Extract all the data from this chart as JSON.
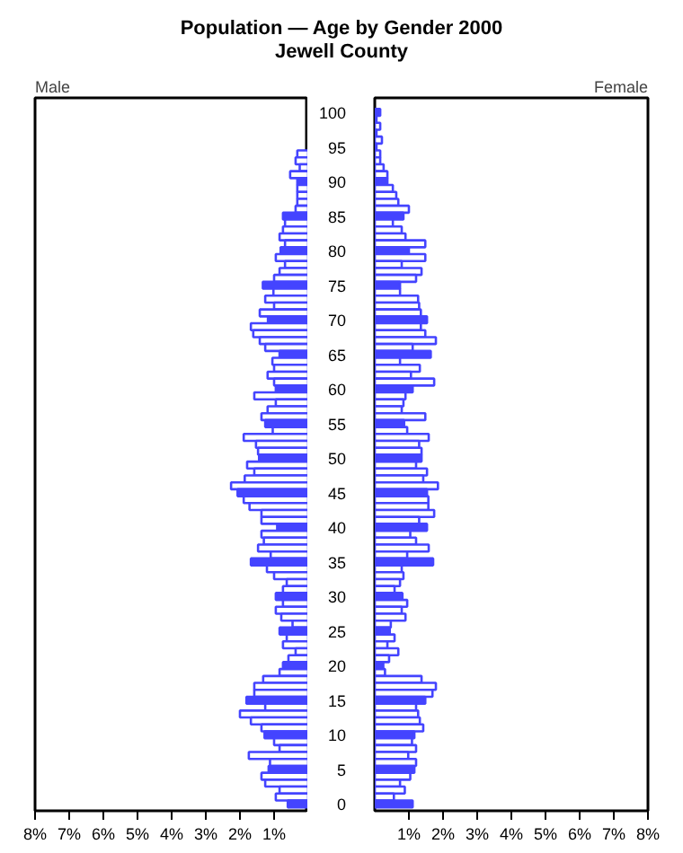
{
  "chart_data": [
    {
      "type": "bar",
      "orientation": "horizontal",
      "title": "Population — Age by Gender 2000",
      "subtitle": "Jewell County",
      "tick_labels": "x",
      "grid": false,
      "categories": [
        "100",
        null,
        null,
        null,
        null,
        "95",
        null,
        null,
        null,
        null,
        "90",
        null,
        null,
        null,
        null,
        "85",
        null,
        null,
        null,
        null,
        "80",
        null,
        null,
        null,
        null,
        "75",
        null,
        null,
        null,
        null,
        "70",
        null,
        null,
        null,
        null,
        "65",
        null,
        null,
        null,
        null,
        "60",
        null,
        null,
        null,
        null,
        "55",
        null,
        null,
        null,
        null,
        "50",
        null,
        null,
        null,
        null,
        "45",
        null,
        null,
        null,
        null,
        "40",
        null,
        null,
        null,
        null,
        "35",
        null,
        null,
        null,
        null,
        "30",
        null,
        null,
        null,
        null,
        "25",
        null,
        null,
        null,
        null,
        "20",
        null,
        null,
        null,
        null,
        "15",
        null,
        null,
        null,
        null,
        "10",
        null,
        null,
        null,
        null,
        "5",
        null,
        null,
        null,
        null,
        "0"
      ],
      "xlim": [
        8,
        0
      ],
      "xticks": [
        {
          "value": 8,
          "label": "8%"
        },
        {
          "value": 7,
          "label": "7%"
        },
        {
          "value": 6,
          "label": "6%"
        },
        {
          "value": 5,
          "label": "5%"
        },
        {
          "value": 4,
          "label": "4%"
        },
        {
          "value": 3,
          "label": "3%"
        },
        {
          "value": 2,
          "label": "2%"
        },
        {
          "value": 1,
          "label": "1%"
        }
      ],
      "series": [
        {
          "name": "Male",
          "color": "#4444ff",
          "colors": [
            "#4444ff",
            "#ffffff",
            "#ffffff",
            "#ffffff",
            "#ffffff",
            "#4444ff",
            "#ffffff",
            "#ffffff",
            "#ffffff",
            "#ffffff",
            "#4444ff",
            "#ffffff",
            "#ffffff",
            "#ffffff",
            "#ffffff",
            "#4444ff",
            "#ffffff",
            "#ffffff",
            "#ffffff",
            "#ffffff",
            "#4444ff",
            "#ffffff",
            "#ffffff",
            "#ffffff",
            "#ffffff",
            "#4444ff",
            "#ffffff",
            "#ffffff",
            "#ffffff",
            "#ffffff",
            "#4444ff",
            "#ffffff",
            "#ffffff",
            "#ffffff",
            "#ffffff",
            "#4444ff",
            "#ffffff",
            "#ffffff",
            "#ffffff",
            "#ffffff",
            "#4444ff",
            "#ffffff",
            "#ffffff",
            "#ffffff",
            "#ffffff",
            "#4444ff",
            "#ffffff",
            "#ffffff",
            "#ffffff",
            "#ffffff",
            "#4444ff",
            "#ffffff",
            "#ffffff",
            "#ffffff",
            "#ffffff",
            "#4444ff",
            "#ffffff",
            "#ffffff",
            "#ffffff",
            "#ffffff",
            "#4444ff",
            "#ffffff",
            "#ffffff",
            "#ffffff",
            "#ffffff",
            "#4444ff",
            "#ffffff",
            "#ffffff",
            "#ffffff",
            "#ffffff",
            "#4444ff",
            "#ffffff",
            "#ffffff",
            "#ffffff",
            "#ffffff",
            "#4444ff",
            "#ffffff",
            "#ffffff",
            "#ffffff",
            "#ffffff",
            "#4444ff",
            "#ffffff",
            "#ffffff",
            "#ffffff",
            "#ffffff",
            "#4444ff",
            "#ffffff",
            "#ffffff",
            "#ffffff",
            "#ffffff",
            "#4444ff",
            "#ffffff",
            "#ffffff",
            "#ffffff",
            "#ffffff",
            "#4444ff",
            "#ffffff",
            "#ffffff",
            "#ffffff",
            "#ffffff",
            "#4444ff"
          ],
          "values": [
            null,
            null,
            null,
            null,
            null,
            null,
            0.32,
            0.37,
            0.25,
            0.53,
            0.32,
            0.32,
            0.32,
            0.32,
            0.37,
            0.74,
            0.68,
            0.74,
            0.84,
            0.68,
            0.81,
            0.95,
            0.68,
            0.84,
            1.0,
            1.33,
            1.02,
            1.26,
            1.0,
            1.42,
            1.18,
            1.68,
            1.61,
            1.42,
            1.26,
            0.84,
            1.05,
            1.0,
            1.19,
            1.0,
            0.95,
            1.58,
            0.95,
            1.19,
            1.37,
            1.26,
            1.04,
            1.89,
            1.53,
            1.47,
            1.44,
            1.79,
            1.58,
            1.86,
            2.26,
            2.07,
            1.89,
            1.72,
            1.37,
            1.37,
            0.91,
            1.37,
            1.3,
            1.47,
            1.1,
            1.68,
            1.21,
            1.0,
            0.63,
            0.74,
            0.95,
            0.74,
            0.95,
            0.79,
            0.46,
            0.84,
            0.63,
            0.74,
            0.37,
            0.58,
            0.74,
            0.84,
            1.32,
            1.58,
            1.58,
            1.81,
            1.26,
            2.0,
            1.68,
            1.37,
            1.28,
            1.0,
            0.84,
            1.74,
            1.12,
            1.16,
            1.37,
            1.26,
            0.84,
            0.95,
            0.6
          ]
        }
      ]
    },
    {
      "type": "bar",
      "orientation": "horizontal",
      "grid": false,
      "categories": [
        "100",
        null,
        null,
        null,
        null,
        "95",
        null,
        null,
        null,
        null,
        "90",
        null,
        null,
        null,
        null,
        "85",
        null,
        null,
        null,
        null,
        "80",
        null,
        null,
        null,
        null,
        "75",
        null,
        null,
        null,
        null,
        "70",
        null,
        null,
        null,
        null,
        "65",
        null,
        null,
        null,
        null,
        "60",
        null,
        null,
        null,
        null,
        "55",
        null,
        null,
        null,
        null,
        "50",
        null,
        null,
        null,
        null,
        "45",
        null,
        null,
        null,
        null,
        "40",
        null,
        null,
        null,
        null,
        "35",
        null,
        null,
        null,
        null,
        "30",
        null,
        null,
        null,
        null,
        "25",
        null,
        null,
        null,
        null,
        "20",
        null,
        null,
        null,
        null,
        "15",
        null,
        null,
        null,
        null,
        "10",
        null,
        null,
        null,
        null,
        "5",
        null,
        null,
        null,
        null,
        "0"
      ],
      "xlim": [
        0,
        8
      ],
      "xticks": [
        {
          "value": 1,
          "label": "1%"
        },
        {
          "value": 2,
          "label": "2%"
        },
        {
          "value": 3,
          "label": "3%"
        },
        {
          "value": 4,
          "label": "4%"
        },
        {
          "value": 5,
          "label": "5%"
        },
        {
          "value": 6,
          "label": "6%"
        },
        {
          "value": 7,
          "label": "7%"
        },
        {
          "value": 8,
          "label": "8%"
        }
      ],
      "series": [
        {
          "name": "Female",
          "color": "#4444ff",
          "colors": [
            "#4444ff",
            "#ffffff",
            "#ffffff",
            "#ffffff",
            "#ffffff",
            "#4444ff",
            "#ffffff",
            "#ffffff",
            "#ffffff",
            "#ffffff",
            "#4444ff",
            "#ffffff",
            "#ffffff",
            "#ffffff",
            "#ffffff",
            "#4444ff",
            "#ffffff",
            "#ffffff",
            "#ffffff",
            "#ffffff",
            "#4444ff",
            "#ffffff",
            "#ffffff",
            "#ffffff",
            "#ffffff",
            "#4444ff",
            "#ffffff",
            "#ffffff",
            "#ffffff",
            "#ffffff",
            "#4444ff",
            "#ffffff",
            "#ffffff",
            "#ffffff",
            "#ffffff",
            "#4444ff",
            "#ffffff",
            "#ffffff",
            "#ffffff",
            "#ffffff",
            "#4444ff",
            "#ffffff",
            "#ffffff",
            "#ffffff",
            "#ffffff",
            "#4444ff",
            "#ffffff",
            "#ffffff",
            "#ffffff",
            "#ffffff",
            "#4444ff",
            "#ffffff",
            "#ffffff",
            "#ffffff",
            "#ffffff",
            "#4444ff",
            "#ffffff",
            "#ffffff",
            "#ffffff",
            "#ffffff",
            "#4444ff",
            "#ffffff",
            "#ffffff",
            "#ffffff",
            "#ffffff",
            "#4444ff",
            "#ffffff",
            "#ffffff",
            "#ffffff",
            "#ffffff",
            "#4444ff",
            "#ffffff",
            "#ffffff",
            "#ffffff",
            "#ffffff",
            "#4444ff",
            "#ffffff",
            "#ffffff",
            "#ffffff",
            "#ffffff",
            "#4444ff",
            "#ffffff",
            "#ffffff",
            "#ffffff",
            "#ffffff",
            "#4444ff",
            "#ffffff",
            "#ffffff",
            "#ffffff",
            "#ffffff",
            "#4444ff",
            "#ffffff",
            "#ffffff",
            "#ffffff",
            "#ffffff",
            "#4444ff",
            "#ffffff",
            "#ffffff",
            "#ffffff",
            "#ffffff",
            "#4444ff"
          ],
          "values": [
            0.16,
            0.05,
            0.16,
            0.05,
            0.21,
            0.05,
            0.16,
            0.16,
            0.26,
            0.37,
            0.37,
            0.53,
            0.63,
            0.69,
            1.0,
            0.84,
            0.53,
            0.79,
            0.9,
            1.48,
            1.0,
            1.48,
            0.79,
            1.37,
            1.21,
            0.74,
            0.74,
            1.27,
            1.3,
            1.35,
            1.53,
            1.35,
            1.48,
            1.79,
            1.11,
            1.64,
            0.74,
            1.32,
            1.06,
            1.74,
            1.11,
            0.9,
            0.84,
            0.79,
            1.48,
            0.86,
            0.95,
            1.58,
            1.3,
            1.37,
            1.37,
            1.21,
            1.53,
            1.42,
            1.85,
            1.53,
            1.57,
            1.57,
            1.74,
            1.3,
            1.53,
            1.04,
            1.21,
            1.58,
            0.95,
            1.71,
            0.79,
            0.84,
            0.74,
            0.58,
            0.81,
            0.95,
            0.79,
            0.9,
            0.47,
            0.44,
            0.58,
            0.37,
            0.69,
            0.42,
            0.25,
            0.3,
            1.37,
            1.79,
            1.69,
            1.48,
            1.21,
            1.27,
            1.32,
            1.42,
            1.16,
            1.09,
            1.21,
            0.98,
            1.21,
            1.16,
            1.04,
            0.74,
            0.88,
            0.56,
            1.11
          ]
        }
      ]
    }
  ]
}
